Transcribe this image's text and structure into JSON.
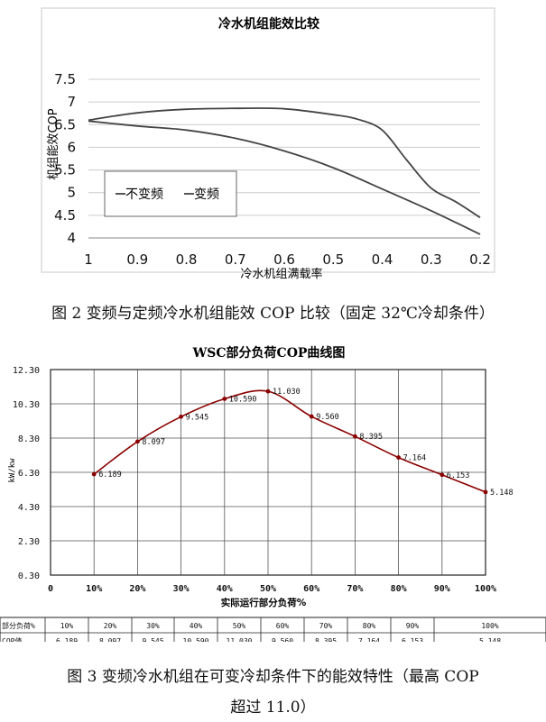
{
  "chart_data": [
    {
      "type": "line",
      "title": "冷水机组能效比较",
      "xlabel": "冷水机组满载率",
      "ylabel": "机组能效COP",
      "x_ticks": [
        "1",
        "0.9",
        "0.8",
        "0.7",
        "0.6",
        "0.5",
        "0.4",
        "0.3",
        "0.2"
      ],
      "y_ticks": [
        "4",
        "4.5",
        "5",
        "5.5",
        "6",
        "6.5",
        "7",
        "7.5"
      ],
      "xlim": [
        1,
        0.2
      ],
      "ylim": [
        4,
        7.5
      ],
      "grid": "horizontal",
      "legend_position": "lower-left",
      "series": [
        {
          "name": "不变频",
          "x": [
            1,
            0.9,
            0.8,
            0.7,
            0.6,
            0.5,
            0.4,
            0.3,
            0.2
          ],
          "y": [
            6.58,
            6.47,
            6.38,
            6.2,
            5.92,
            5.55,
            5.08,
            4.6,
            4.08
          ]
        },
        {
          "name": "变频",
          "x": [
            1,
            0.9,
            0.8,
            0.7,
            0.6,
            0.5,
            0.45,
            0.4,
            0.35,
            0.3,
            0.25,
            0.2
          ],
          "y": [
            6.6,
            6.76,
            6.84,
            6.86,
            6.85,
            6.72,
            6.62,
            6.38,
            5.72,
            5.1,
            4.8,
            4.45
          ]
        }
      ]
    },
    {
      "type": "line",
      "title": "WSC部分负荷COP曲线图",
      "xlabel": "实际运行部分负荷%",
      "ylabel": "kW/kw",
      "x_ticks": [
        "0",
        "10%",
        "20%",
        "30%",
        "40%",
        "50%",
        "60%",
        "70%",
        "80%",
        "90%",
        "100%"
      ],
      "y_ticks": [
        "0.30",
        "2.30",
        "4.30",
        "6.30",
        "8.30",
        "10.30",
        "12.30"
      ],
      "xlim": [
        0,
        100
      ],
      "ylim": [
        0.3,
        12.3
      ],
      "grid": "both",
      "series": [
        {
          "x": [
            10,
            20,
            30,
            40,
            50,
            60,
            70,
            80,
            90,
            100
          ],
          "y": [
            6.189,
            8.097,
            9.545,
            10.59,
            11.03,
            9.56,
            8.395,
            7.164,
            6.153,
            5.148
          ],
          "labels": [
            "6.189",
            "8.097",
            "9.545",
            "10.590",
            "11.030",
            "9.560",
            "8.395",
            "7.164",
            "6.153",
            "5.148"
          ]
        }
      ],
      "table": {
        "row_headers": [
          "部分负荷%",
          "COP值"
        ],
        "columns": [
          "10%",
          "20%",
          "30%",
          "40%",
          "50%",
          "60%",
          "70%",
          "80%",
          "90%",
          "100%"
        ],
        "values": [
          "6.189",
          "8.097",
          "9.545",
          "10.590",
          "11.030",
          "9.560",
          "8.395",
          "7.164",
          "6.153",
          "5.148"
        ]
      }
    }
  ],
  "captions": {
    "fig2": "图 2 变频与定频冷水机组能效 COP 比较（固定 32℃冷却条件）",
    "fig3_line1": "图 3 变频冷水机组在可变冷却条件下的能效特性（最高 COP",
    "fig3_line2": "超过 11.0）"
  },
  "colors": {
    "line1": "#444444",
    "line2": "#8b0000",
    "grid": "#cccccc"
  }
}
